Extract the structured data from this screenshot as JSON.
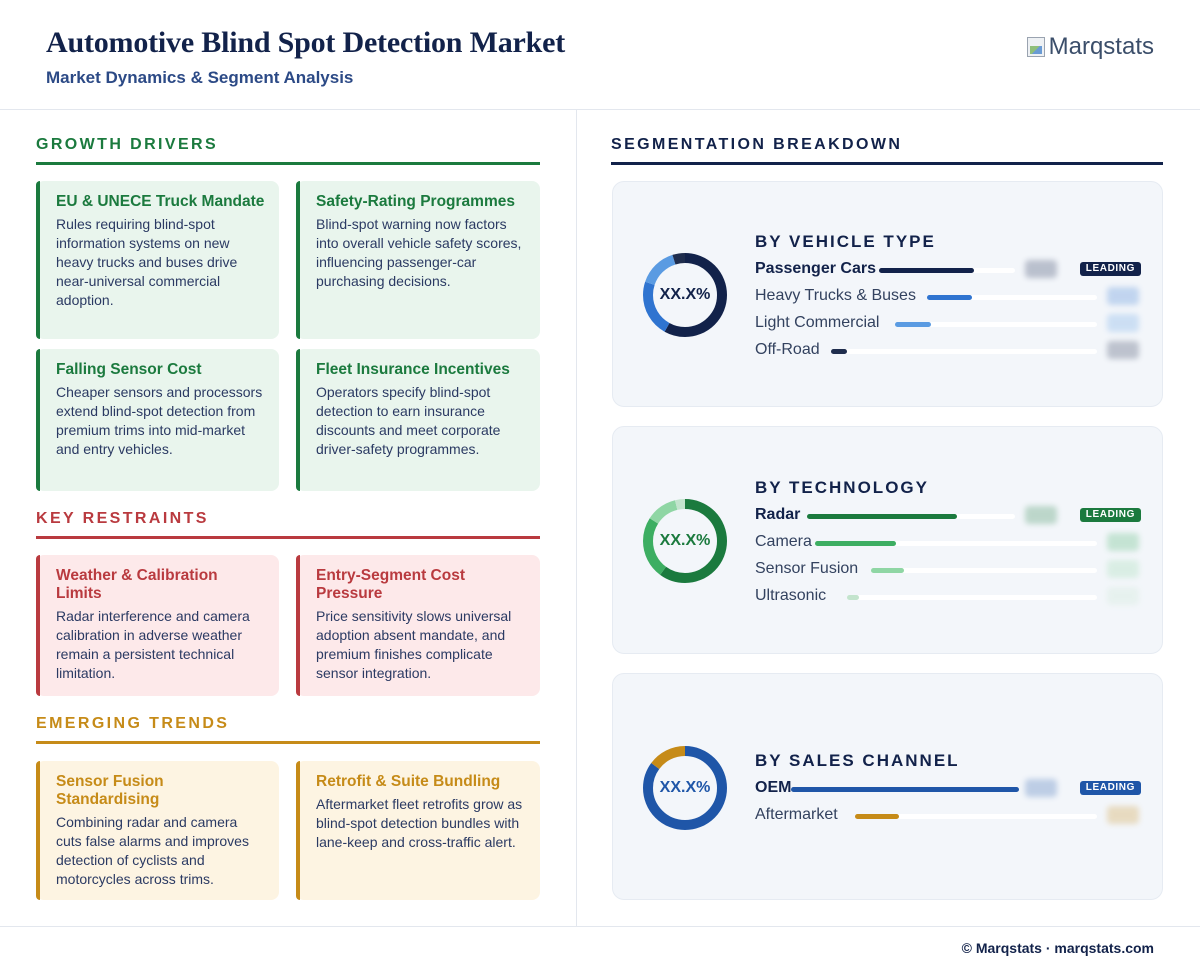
{
  "header": {
    "title": "Automotive Blind Spot Detection Market",
    "subtitle": "Market Dynamics & Segment Analysis",
    "logo_text": "Marqstats"
  },
  "drivers": {
    "heading": "GROWTH DRIVERS",
    "cards": [
      {
        "title": "EU & UNECE Truck Mandate",
        "text": "Rules requiring blind-spot information systems on new heavy trucks and buses drive near-universal commercial adoption."
      },
      {
        "title": "Safety-Rating Programmes",
        "text": "Blind-spot warning now factors into overall vehicle safety scores, influencing passenger-car purchasing decisions."
      },
      {
        "title": "Falling Sensor Cost",
        "text": "Cheaper sensors and processors extend blind-spot detection from premium trims into mid-market and entry vehicles."
      },
      {
        "title": "Fleet Insurance Incentives",
        "text": "Operators specify blind-spot detection to earn insurance discounts and meet corporate driver-safety programmes."
      }
    ]
  },
  "restraints": {
    "heading": "KEY RESTRAINTS",
    "cards": [
      {
        "title": "Weather & Calibration Limits",
        "text": "Radar interference and camera calibration in adverse weather remain a persistent technical limitation."
      },
      {
        "title": "Entry-Segment Cost Pressure",
        "text": "Price sensitivity slows universal adoption absent mandate, and premium finishes complicate sensor integration."
      }
    ]
  },
  "trends": {
    "heading": "EMERGING TRENDS",
    "cards": [
      {
        "title": "Sensor Fusion Standardising",
        "text": "Combining radar and camera cuts false alarms and improves detection of cyclists and motorcycles across trims."
      },
      {
        "title": "Retrofit & Suite Bundling",
        "text": "Aftermarket fleet retrofits grow as blind-spot detection bundles with lane-keep and cross-traffic alert."
      }
    ]
  },
  "segmentation": {
    "heading": "SEGMENTATION BREAKDOWN",
    "leading_label": "LEADING",
    "donut_label": "XX.X%",
    "groups": [
      {
        "title": "BY VEHICLE TYPE",
        "accent": "#12224a",
        "items": [
          {
            "name": "Passenger Cars",
            "share": 0.58,
            "color": "#12224a",
            "leading": true
          },
          {
            "name": "Heavy Trucks & Buses",
            "share": 0.22,
            "color": "#2f74d0",
            "leading": false
          },
          {
            "name": "Light Commercial",
            "share": 0.15,
            "color": "#5a9be2",
            "leading": false
          },
          {
            "name": "Off-Road",
            "share": 0.05,
            "color": "#1f2d4d",
            "leading": false
          }
        ]
      },
      {
        "title": "BY TECHNOLOGY",
        "accent": "#1b7a3e",
        "items": [
          {
            "name": "Radar",
            "share": 0.6,
            "color": "#1b7a3e",
            "leading": true
          },
          {
            "name": "Camera",
            "share": 0.24,
            "color": "#3dae62",
            "leading": false
          },
          {
            "name": "Sensor Fusion",
            "share": 0.12,
            "color": "#8fd6a4",
            "leading": false
          },
          {
            "name": "Ultrasonic",
            "share": 0.04,
            "color": "#c3e4cd",
            "leading": false
          }
        ]
      },
      {
        "title": "BY SALES CHANNEL",
        "accent": "#1f56a8",
        "items": [
          {
            "name": "OEM",
            "share": 0.85,
            "color": "#1f56a8",
            "leading": true
          },
          {
            "name": "Aftermarket",
            "share": 0.15,
            "color": "#c68b18",
            "leading": false
          }
        ]
      }
    ]
  },
  "footer": {
    "text": "© Marqstats · marqstats.com"
  }
}
